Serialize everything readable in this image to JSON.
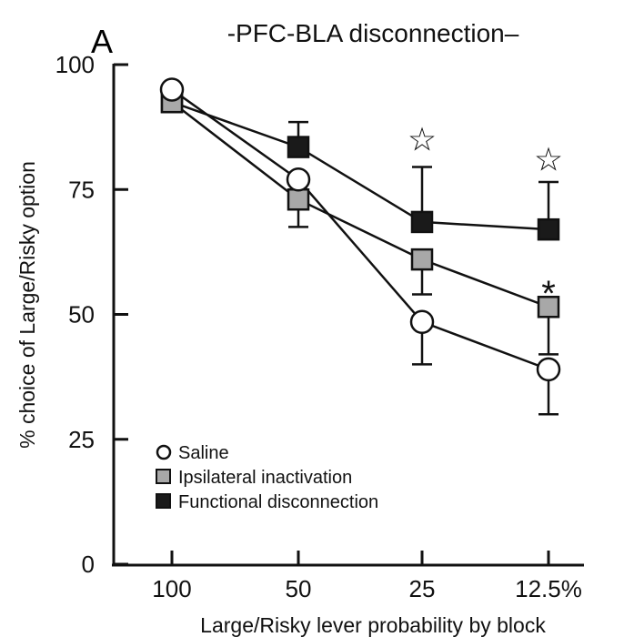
{
  "chart_data": {
    "type": "line",
    "panel_label": "A",
    "title": "-PFC-BLA  disconnection–",
    "xlabel": "Large/Risky lever probability by block",
    "ylabel": "% choice of Large/Risky option",
    "categories": [
      "100",
      "50",
      "25",
      "12.5%"
    ],
    "ylim": [
      0,
      100
    ],
    "yticks": [
      0,
      25,
      50,
      75,
      100
    ],
    "grid": false,
    "legend_position": "bottom-left",
    "series": [
      {
        "name": "Saline",
        "marker": "circle",
        "fill": "#ffffff",
        "values": [
          95,
          77,
          48.5,
          39
        ],
        "err_upper": [
          0,
          0,
          0,
          0
        ],
        "err_lower": [
          0,
          0,
          8.5,
          9
        ]
      },
      {
        "name": "Ipsilateral inactivation",
        "marker": "square",
        "fill": "#a8a8a8",
        "values": [
          92.5,
          73,
          61,
          51.5
        ],
        "err_upper": [
          0,
          0,
          0,
          0
        ],
        "err_lower": [
          0,
          5.5,
          7,
          9.5
        ]
      },
      {
        "name": "Functional disconnection",
        "marker": "square",
        "fill": "#1a1a1a",
        "values": [
          92.5,
          83.5,
          68.5,
          67
        ],
        "err_upper": [
          0,
          5,
          11,
          9.5
        ],
        "err_lower": [
          0,
          0,
          0,
          0
        ]
      }
    ],
    "annotations": [
      {
        "category": "25",
        "symbol": "☆",
        "value": 85
      },
      {
        "category": "12.5%",
        "symbol": "☆",
        "value": 81
      },
      {
        "category": "12.5%",
        "symbol": "*",
        "value": 55
      }
    ]
  }
}
